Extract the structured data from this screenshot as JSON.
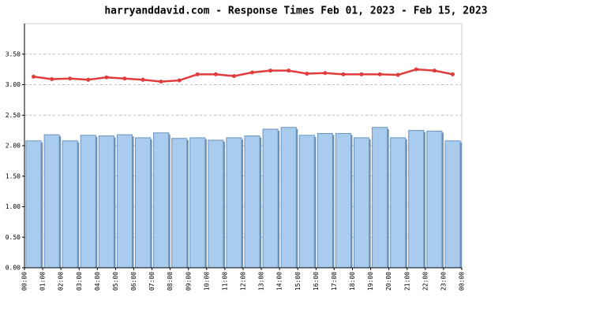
{
  "chart_data": {
    "type": "bar-line",
    "title": "harryanddavid.com - Response Times Feb 01, 2023 - Feb 15, 2023",
    "xtick_labels": [
      "00:00",
      "01:00",
      "02:00",
      "03:00",
      "04:00",
      "05:00",
      "06:00",
      "07:00",
      "08:00",
      "09:00",
      "10:00",
      "11:00",
      "12:00",
      "13:00",
      "14:00",
      "15:00",
      "16:00",
      "17:00",
      "18:00",
      "19:00",
      "20:00",
      "21:00",
      "22:00",
      "23:00",
      "00:00"
    ],
    "series": [
      {
        "type": "bar",
        "color": "#a8cbee",
        "values": [
          2.08,
          2.18,
          2.08,
          2.17,
          2.16,
          2.18,
          2.13,
          2.21,
          2.12,
          2.13,
          2.09,
          2.13,
          2.16,
          2.27,
          2.3,
          2.17,
          2.2,
          2.2,
          2.13,
          2.3,
          2.13,
          2.25,
          2.24,
          2.08
        ]
      },
      {
        "type": "line",
        "color": "#e03c3c",
        "values": [
          3.13,
          3.09,
          3.1,
          3.08,
          3.12,
          3.1,
          3.08,
          3.05,
          3.07,
          3.17,
          3.17,
          3.14,
          3.2,
          3.23,
          3.23,
          3.18,
          3.19,
          3.17,
          3.17,
          3.17,
          3.16,
          3.25,
          3.23,
          3.17
        ]
      }
    ],
    "ylim": [
      0,
      4
    ],
    "yticks": [
      {
        "value": 0,
        "label": "0.00"
      },
      {
        "value": 0.5,
        "label": "0.50"
      },
      {
        "value": 1,
        "label": "1.00"
      },
      {
        "value": 1.5,
        "label": "1.50"
      },
      {
        "value": 2,
        "label": "2.00"
      },
      {
        "value": 2.5,
        "label": "2.50"
      },
      {
        "value": 3,
        "label": "3.00"
      },
      {
        "value": 3.5,
        "label": "3.50"
      }
    ],
    "grid": true
  }
}
